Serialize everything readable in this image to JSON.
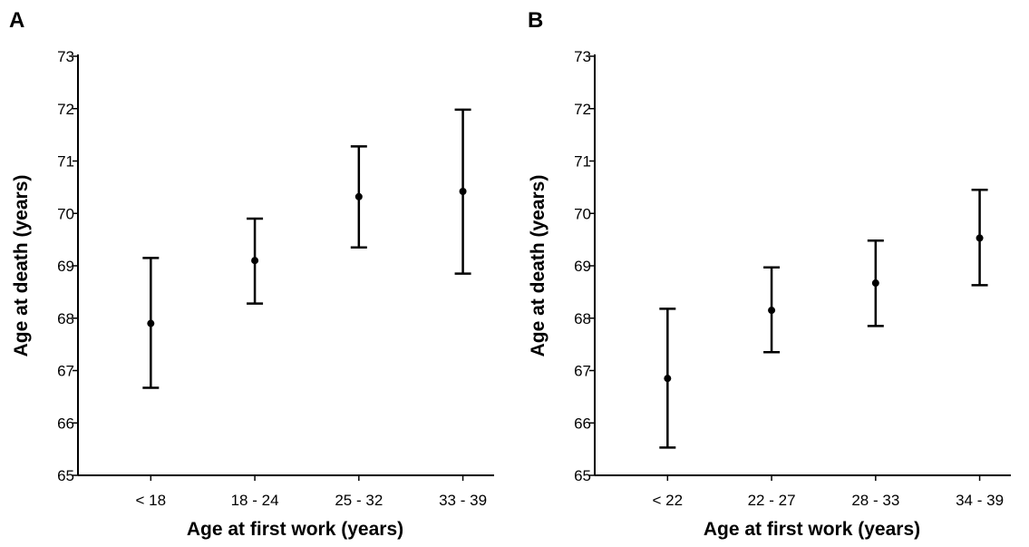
{
  "chart_data": [
    {
      "panel": "A",
      "type": "scatter",
      "xlabel": "Age at first work (years)",
      "ylabel": "Age at death (years)",
      "categories": [
        "< 18",
        "18 - 24",
        "25 - 32",
        "33 - 39"
      ],
      "values": [
        67.9,
        69.1,
        70.32,
        70.42
      ],
      "ci_low": [
        66.67,
        68.28,
        69.35,
        68.85
      ],
      "ci_high": [
        69.15,
        69.9,
        71.28,
        71.98
      ],
      "ylim": [
        65,
        73
      ],
      "yticks": [
        65,
        66,
        67,
        68,
        69,
        70,
        71,
        72,
        73
      ],
      "grid": false
    },
    {
      "panel": "B",
      "type": "scatter",
      "xlabel": "Age at first work (years)",
      "ylabel": "Age at death (years)",
      "categories": [
        "< 22",
        "22 - 27",
        "28 - 33",
        "34 - 39"
      ],
      "values": [
        66.85,
        68.15,
        68.67,
        69.53
      ],
      "ci_low": [
        65.53,
        67.35,
        67.85,
        68.63
      ],
      "ci_high": [
        68.18,
        68.97,
        69.48,
        70.45
      ],
      "ylim": [
        65,
        73
      ],
      "yticks": [
        65,
        66,
        67,
        68,
        69,
        70,
        71,
        72,
        73
      ],
      "grid": false
    }
  ]
}
